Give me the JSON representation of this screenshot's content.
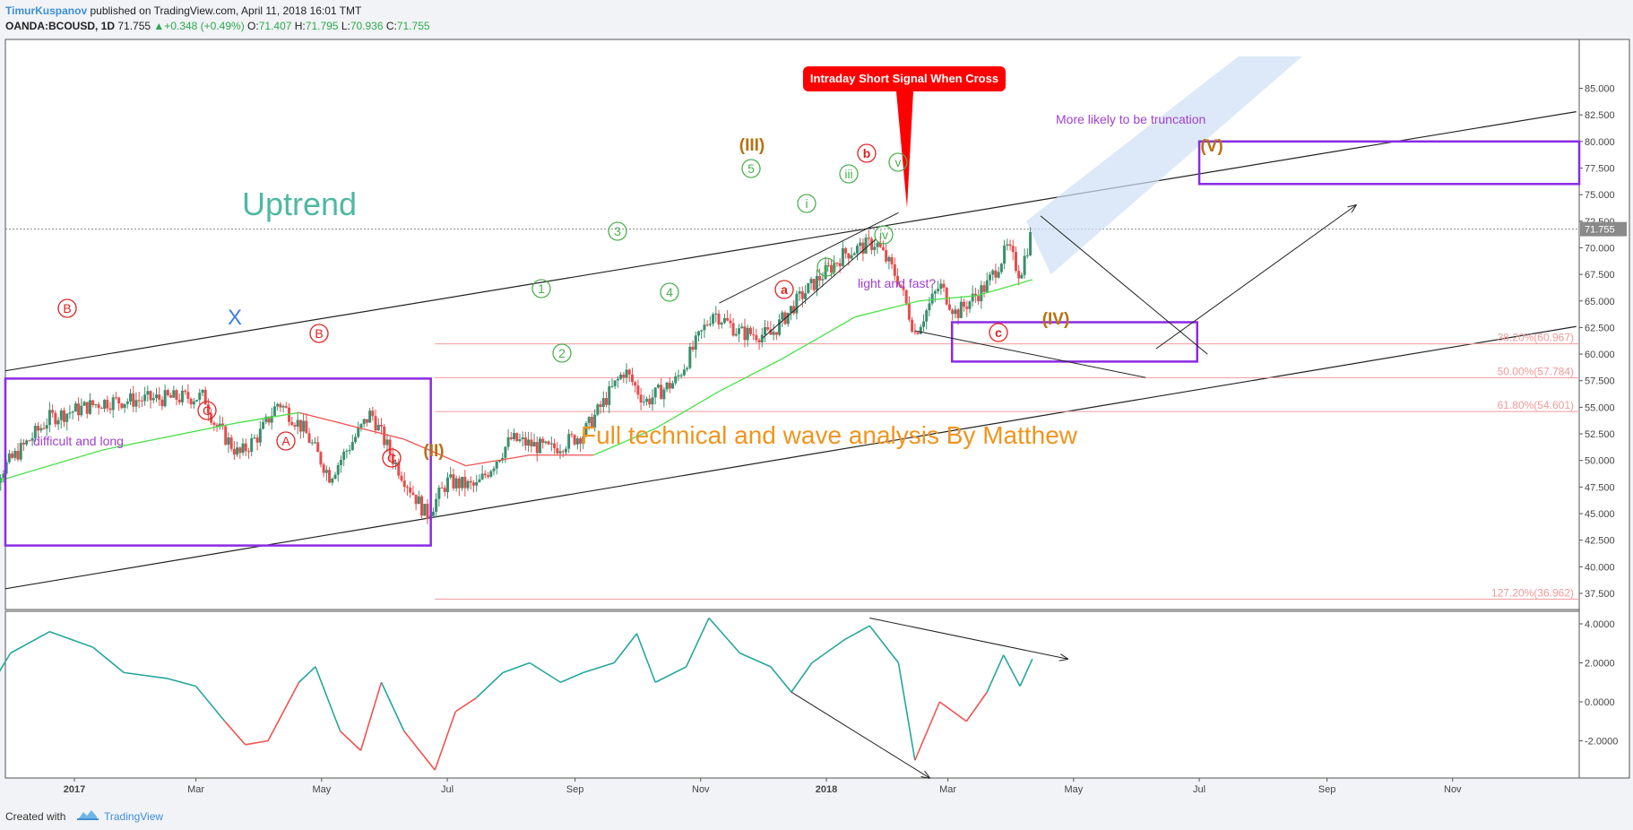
{
  "header": {
    "author": "TimurKuspanov",
    "published": "published on TradingView.com, April 11, 2018 16:01 TMT",
    "symbol": "OANDA:BCOUSD, 1D",
    "last": "71.755",
    "change": "+0.348 (+0.49%)",
    "o_label": "O:",
    "o": "71.407",
    "h_label": "H:",
    "h": "71.795",
    "l_label": "L:",
    "l": "70.936",
    "c_label": "C:",
    "c": "71.755"
  },
  "footer": {
    "created_with": "Created with",
    "brand": "TradingView"
  },
  "colors": {
    "up_candle": "#3b8f6e",
    "down_candle": "#e54d4d",
    "ma_green": "#4be04b",
    "ma_red": "#ef5350",
    "channel_box": "#8a2be2",
    "fib": "#ef9a9a",
    "wave_orange": "#b8700f",
    "wave_red": "#e02020",
    "wave_green": "#4caf50",
    "osc_up": "#26a69a",
    "osc_down": "#ef5350",
    "callout": "#ff0000"
  },
  "chart_data": [
    {
      "type": "candlestick",
      "title": "OANDA:BCOUSD, 1D",
      "ylim": [
        36,
        86
      ],
      "y_ticks": [
        "85.000",
        "82.500",
        "80.000",
        "77.500",
        "75.000",
        "72.500",
        "70.000",
        "67.500",
        "65.000",
        "62.500",
        "60.000",
        "57.500",
        "55.000",
        "52.500",
        "50.000",
        "47.500",
        "45.000",
        "42.500",
        "40.000",
        "37.500"
      ],
      "last_price_label": "71.755",
      "x_ticks": [
        "2017",
        "Mar",
        "May",
        "Jul",
        "Sep",
        "Nov",
        "2018",
        "Mar",
        "May",
        "Jul",
        "Sep",
        "Nov"
      ],
      "price_path": [
        [
          "2016-11-15",
          46.5
        ],
        [
          "2016-12-01",
          50.0
        ],
        [
          "2016-12-20",
          54.0
        ],
        [
          "2017-01-15",
          55.5
        ],
        [
          "2017-02-10",
          55.8
        ],
        [
          "2017-03-05",
          56.0
        ],
        [
          "2017-03-10",
          53.5
        ],
        [
          "2017-03-22",
          50.5
        ],
        [
          "2017-04-01",
          52.5
        ],
        [
          "2017-04-10",
          55.5
        ],
        [
          "2017-04-22",
          53.0
        ],
        [
          "2017-05-05",
          48.5
        ],
        [
          "2017-05-15",
          51.5
        ],
        [
          "2017-05-25",
          54.5
        ],
        [
          "2017-06-05",
          50.0
        ],
        [
          "2017-06-21",
          44.8
        ],
        [
          "2017-07-01",
          48.0
        ],
        [
          "2017-07-15",
          47.5
        ],
        [
          "2017-08-01",
          52.0
        ],
        [
          "2017-08-20",
          51.0
        ],
        [
          "2017-09-05",
          52.5
        ],
        [
          "2017-09-25",
          58.5
        ],
        [
          "2017-10-05",
          55.5
        ],
        [
          "2017-10-20",
          57.5
        ],
        [
          "2017-11-07",
          64.0
        ],
        [
          "2017-11-20",
          62.0
        ],
        [
          "2017-12-05",
          61.8
        ],
        [
          "2017-12-20",
          65.5
        ],
        [
          "2018-01-10",
          69.5
        ],
        [
          "2018-01-25",
          70.5
        ],
        [
          "2018-02-05",
          67.0
        ],
        [
          "2018-02-13",
          62.0
        ],
        [
          "2018-02-25",
          66.5
        ],
        [
          "2018-03-05",
          63.8
        ],
        [
          "2018-03-20",
          66.5
        ],
        [
          "2018-03-30",
          70.0
        ],
        [
          "2018-04-05",
          67.5
        ],
        [
          "2018-04-11",
          71.755
        ]
      ],
      "moving_average": [
        [
          "2016-11-15",
          47.5
        ],
        [
          "2017-01-15",
          51.0
        ],
        [
          "2017-03-20",
          53.5
        ],
        [
          "2017-04-20",
          54.5
        ],
        [
          "2017-06-10",
          52.0
        ],
        [
          "2017-07-10",
          49.5
        ],
        [
          "2017-08-10",
          50.5
        ],
        [
          "2017-09-10",
          50.5
        ],
        [
          "2017-10-10",
          53.0
        ],
        [
          "2017-11-10",
          56.5
        ],
        [
          "2017-12-10",
          59.5
        ],
        [
          "2018-01-15",
          63.5
        ],
        [
          "2018-02-15",
          65.0
        ],
        [
          "2018-03-15",
          65.5
        ],
        [
          "2018-04-11",
          67.0
        ]
      ],
      "fibonacci": [
        {
          "label": "38.20%(60.967)",
          "value": 60.967
        },
        {
          "label": "50.00%(57.784)",
          "value": 57.784
        },
        {
          "label": "61.80%(54.601)",
          "value": 54.601
        },
        {
          "label": "127.20%(36.962)",
          "value": 36.962
        }
      ],
      "annotations": {
        "uptrend": "Uptrend",
        "difficult": "difficult and long",
        "light_fast": "light and fast?",
        "truncation": "More likely to be truncation",
        "full_analysis": "Full technical and wave analysis By Matthew",
        "callout": "Intraday Short Signal When Cross",
        "x_mark": "X"
      },
      "wave_labels": {
        "big": [
          "(II)",
          "(III)",
          "(IV)",
          "(V)"
        ],
        "red_circles": [
          "B",
          "C",
          "A",
          "B",
          "C",
          "a",
          "b",
          "c"
        ],
        "green_circles": [
          "1",
          "2",
          "3",
          "4",
          "5",
          "i",
          "ii",
          "iii",
          "iv",
          "v"
        ]
      }
    },
    {
      "type": "line",
      "title": "",
      "ylim": [
        -3.8,
        4.6
      ],
      "y_ticks": [
        "4.0000",
        "2.0000",
        "0.0000",
        "-2.0000"
      ],
      "series": [
        {
          "values": [
            [
              "2016-11-15",
              -0.3
            ],
            [
              "2016-12-01",
              2.5
            ],
            [
              "2016-12-20",
              3.6
            ],
            [
              "2017-01-10",
              2.8
            ],
            [
              "2017-01-25",
              1.5
            ],
            [
              "2017-02-15",
              1.2
            ],
            [
              "2017-03-01",
              0.8
            ],
            [
              "2017-03-15",
              -1.0
            ],
            [
              "2017-03-25",
              -2.2
            ],
            [
              "2017-04-05",
              -2.0
            ],
            [
              "2017-04-20",
              1.0
            ],
            [
              "2017-04-28",
              1.8
            ],
            [
              "2017-05-10",
              -1.5
            ],
            [
              "2017-05-20",
              -2.5
            ],
            [
              "2017-05-30",
              1.0
            ],
            [
              "2017-06-10",
              -1.5
            ],
            [
              "2017-06-25",
              -3.5
            ],
            [
              "2017-07-05",
              -0.5
            ],
            [
              "2017-07-15",
              0.2
            ],
            [
              "2017-07-28",
              1.5
            ],
            [
              "2017-08-10",
              2.0
            ],
            [
              "2017-08-25",
              1.0
            ],
            [
              "2017-09-05",
              1.5
            ],
            [
              "2017-09-20",
              2.0
            ],
            [
              "2017-10-01",
              3.5
            ],
            [
              "2017-10-10",
              1.0
            ],
            [
              "2017-10-25",
              1.8
            ],
            [
              "2017-11-05",
              4.3
            ],
            [
              "2017-11-20",
              2.5
            ],
            [
              "2017-12-05",
              1.8
            ],
            [
              "2017-12-15",
              0.5
            ],
            [
              "2017-12-25",
              2.0
            ],
            [
              "2018-01-10",
              3.2
            ],
            [
              "2018-01-22",
              3.9
            ],
            [
              "2018-02-05",
              2.0
            ],
            [
              "2018-02-13",
              -3.0
            ],
            [
              "2018-02-25",
              0.0
            ],
            [
              "2018-03-10",
              -1.0
            ],
            [
              "2018-03-20",
              0.5
            ],
            [
              "2018-03-28",
              2.4
            ],
            [
              "2018-04-05",
              0.8
            ],
            [
              "2018-04-11",
              2.2
            ]
          ]
        }
      ]
    }
  ]
}
